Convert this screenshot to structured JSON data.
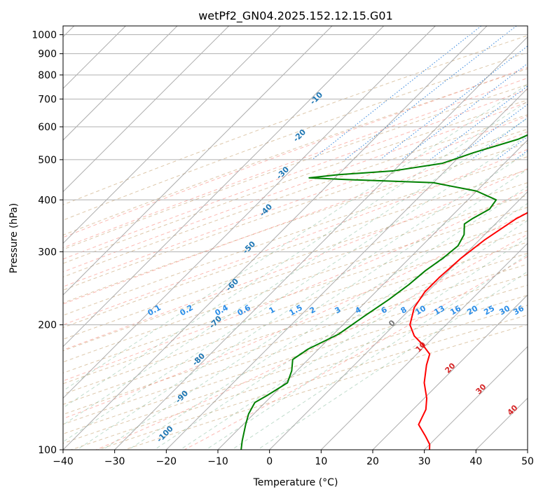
{
  "chart_data": {
    "type": "line",
    "title": "wetPf2_GN04.2025.152.12.15.G01",
    "xlabel": "Temperature (°C)",
    "ylabel": "Pressure (hPa)",
    "xlim": [
      -40,
      50
    ],
    "ylim": [
      1050,
      100
    ],
    "y_scale": "log",
    "x_ticks": [
      -40,
      -30,
      -20,
      -10,
      0,
      10,
      20,
      30,
      40,
      50
    ],
    "y_ticks": [
      100,
      200,
      300,
      400,
      500,
      600,
      700,
      800,
      900,
      1000
    ],
    "grid": true,
    "skew": true,
    "series": [
      {
        "color": "#ff0000",
        "points": [
          [
            8.5,
            830
          ],
          [
            6.5,
            800
          ],
          [
            5.5,
            760
          ],
          [
            5.5,
            720
          ],
          [
            7.0,
            690
          ],
          [
            6.0,
            640
          ],
          [
            5.0,
            600
          ],
          [
            5.5,
            550
          ],
          [
            6.0,
            500
          ],
          [
            6.5,
            460
          ],
          [
            7.5,
            420
          ],
          [
            5.5,
            390
          ],
          [
            3.0,
            360
          ],
          [
            1.0,
            320
          ],
          [
            0.0,
            290
          ],
          [
            -0.5,
            260
          ],
          [
            -0.5,
            240
          ],
          [
            0.5,
            220
          ],
          [
            3.0,
            200
          ],
          [
            6.0,
            188
          ],
          [
            9.0,
            180
          ],
          [
            12.5,
            170
          ],
          [
            14.0,
            160
          ],
          [
            17.0,
            145
          ],
          [
            20.5,
            133
          ],
          [
            22.5,
            125
          ],
          [
            24.0,
            115
          ],
          [
            27.5,
            108
          ],
          [
            30.0,
            103
          ],
          [
            31.0,
            100
          ]
        ]
      },
      {
        "color": "#008000",
        "points": [
          [
            6.5,
            830
          ],
          [
            6.0,
            800
          ],
          [
            6.0,
            770
          ],
          [
            4.0,
            740
          ],
          [
            0.0,
            700
          ],
          [
            -10.0,
            670
          ],
          [
            -15.0,
            650
          ],
          [
            -13.0,
            630
          ],
          [
            -9.0,
            600
          ],
          [
            -12.0,
            560
          ],
          [
            -18.0,
            520
          ],
          [
            -22.0,
            490
          ],
          [
            -30.0,
            470
          ],
          [
            -40.0,
            460
          ],
          [
            -45.0,
            452
          ],
          [
            -38.0,
            448
          ],
          [
            -20.0,
            440
          ],
          [
            -10.0,
            420
          ],
          [
            -4.5,
            400
          ],
          [
            -4.0,
            380
          ],
          [
            -5.5,
            360
          ],
          [
            -6.0,
            350
          ],
          [
            -4.0,
            330
          ],
          [
            -3.0,
            310
          ],
          [
            -3.5,
            290
          ],
          [
            -4.5,
            270
          ],
          [
            -5.0,
            250
          ],
          [
            -6.0,
            230
          ],
          [
            -7.5,
            210
          ],
          [
            -9.0,
            190
          ],
          [
            -12.0,
            175
          ],
          [
            -13.0,
            165
          ],
          [
            -11.0,
            155
          ],
          [
            -9.5,
            145
          ],
          [
            -11.0,
            135
          ],
          [
            -12.0,
            130
          ],
          [
            -11.0,
            122
          ],
          [
            -9.5,
            115
          ],
          [
            -7.0,
            105
          ],
          [
            -5.5,
            100
          ]
        ]
      }
    ],
    "dry_adiabat_labels": [
      "-100",
      "-90",
      "-80",
      "-70",
      "-60",
      "-50",
      "-40",
      "-30",
      "-20",
      "-10"
    ],
    "mixing_ratio_labels": [
      "0.1",
      "0.2",
      "0.4",
      "0.6",
      "1",
      "1.5",
      "2",
      "3",
      "4",
      "6",
      "8",
      "10",
      "13",
      "16",
      "20",
      "25",
      "30",
      "36"
    ],
    "moist_adiabat_labels": [
      "0",
      "10",
      "20",
      "30",
      "40"
    ]
  }
}
